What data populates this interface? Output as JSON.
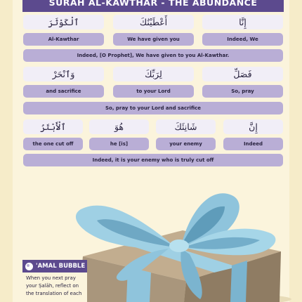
{
  "title": "SURAH AL-KAWTHAR - THE ABUNDANCE",
  "verse1": {
    "arabic": [
      "إِنَّا",
      "أَعْطَيْنَٰكَ",
      "ٱلْكَوْثَرَ"
    ],
    "words": [
      "Indeed, We",
      "We have given you",
      "Al-Kawthar"
    ],
    "translation": "Indeed, [O Prophet], We have given to you Al-Kawthar."
  },
  "verse2": {
    "arabic": [
      "فَصَلِّ",
      "لِرَبِّكَ",
      "وَٱنْحَرْ"
    ],
    "words": [
      "So, pray",
      "to your Lord",
      "and sacrifice"
    ],
    "translation": "So, pray to your Lord and sacrifice"
  },
  "verse3": {
    "arabic": [
      "إِنَّ",
      "شَانِئَكَ",
      "هُوَ",
      "ٱلْأَبْتَرُ"
    ],
    "words": [
      "Indeed",
      "your enemy",
      "he [is]",
      "the one cut off"
    ],
    "translation": "Indeed, it is your enemy who is truly cut off"
  },
  "amal_bubble": {
    "title": "'AMAL BUBBLE",
    "lines": [
      "When you next pray",
      "your Ṣalāh, reflect on",
      "the translation of each"
    ]
  },
  "colors": {
    "title_bg": "#5c4a8e",
    "arabic_cell": "#f1eef7",
    "translation_cell": "#b9aed6",
    "background": "#fbf4dc",
    "ribbon": "#8fc4dc",
    "box": "#a9967c"
  }
}
